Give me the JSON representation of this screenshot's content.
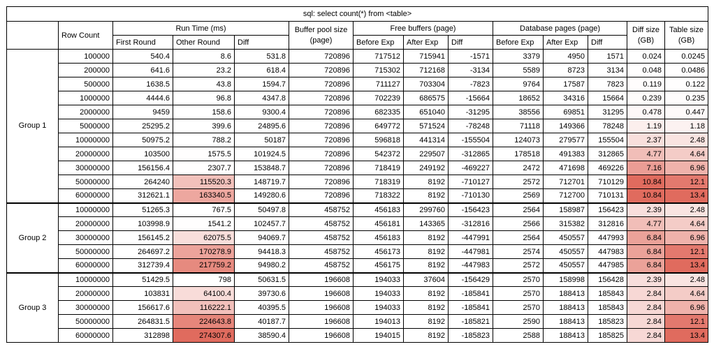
{
  "headers": {
    "row_count": "Row Count",
    "run_time": "Run Time (ms)",
    "first_round": "First Round",
    "other_round": "Other Round",
    "run_diff": "Diff",
    "buffer_pool_line1": "Buffer pool size",
    "buffer_pool_line2": "(page)",
    "free_buffers": "Free buffers (page)",
    "fb_before": "Before Exp",
    "fb_after": "After Exp",
    "fb_diff": "Diff",
    "database_pages": "Database pages (page)",
    "dp_before": "Before Exp",
    "dp_after": "After Exp",
    "dp_diff": "Diff",
    "diff_size_line1": "Diff size",
    "diff_size_line2": "(GB)",
    "table_size_line1": "Table size",
    "table_size_line2": "(GB)"
  },
  "chart_data": {
    "type": "table",
    "title": "sql: select count(*) from <table>",
    "columns": [
      "Group",
      "Row Count",
      "Run Time First Round (ms)",
      "Run Time Other Round (ms)",
      "Run Time Diff (ms)",
      "Buffer pool size (page)",
      "Free buffers Before Exp (page)",
      "Free buffers After Exp (page)",
      "Free buffers Diff (page)",
      "Database pages Before Exp (page)",
      "Database pages After Exp (page)",
      "Database pages Diff (page)",
      "Diff size (GB)",
      "Table size (GB)"
    ],
    "column_keys": [
      "row-count",
      "first-round",
      "other-round",
      "run-time-diff",
      "buffer-pool-size",
      "free-buffers-before-exp",
      "free-buffers-after-exp",
      "free-buffers-diff",
      "db-pages-before-exp",
      "db-pages-after-exp",
      "db-pages-diff",
      "diff-size",
      "table-size"
    ],
    "groups": [
      {
        "label": "Group 1",
        "rows": [
          [
            "100000",
            "540.4",
            "8.6",
            "531.8",
            "720896",
            "717512",
            "715941",
            "-1571",
            "3379",
            "4950",
            "1571",
            "0.024",
            "0.0245"
          ],
          [
            "200000",
            "641.6",
            "23.2",
            "618.4",
            "720896",
            "715302",
            "712168",
            "-3134",
            "5589",
            "8723",
            "3134",
            "0.048",
            "0.0486"
          ],
          [
            "500000",
            "1638.5",
            "43.8",
            "1594.7",
            "720896",
            "711127",
            "703304",
            "-7823",
            "9764",
            "17587",
            "7823",
            "0.119",
            "0.122"
          ],
          [
            "1000000",
            "4444.6",
            "96.8",
            "4347.8",
            "720896",
            "702239",
            "686575",
            "-15664",
            "18652",
            "34316",
            "15664",
            "0.239",
            "0.235"
          ],
          [
            "2000000",
            "9459",
            "158.6",
            "9300.4",
            "720896",
            "682335",
            "651040",
            "-31295",
            "38556",
            "69851",
            "31295",
            "0.478",
            "0.447"
          ],
          [
            "5000000",
            "25295.2",
            "399.6",
            "24895.6",
            "720896",
            "649772",
            "571524",
            "-78248",
            "71118",
            "149366",
            "78248",
            "1.19",
            "1.18"
          ],
          [
            "10000000",
            "50975.2",
            "788.2",
            "50187",
            "720896",
            "596818",
            "441314",
            "-155504",
            "124073",
            "279577",
            "155504",
            "2.37",
            "2.48"
          ],
          [
            "20000000",
            "103500",
            "1575.5",
            "101924.5",
            "720896",
            "542372",
            "229507",
            "-312865",
            "178518",
            "491383",
            "312865",
            "4.77",
            "4.64"
          ],
          [
            "30000000",
            "156156.4",
            "2307.7",
            "153848.7",
            "720896",
            "718419",
            "249192",
            "-469227",
            "2472",
            "471698",
            "469226",
            "7.16",
            "6.96"
          ],
          [
            "50000000",
            "264240",
            "115520.3",
            "148719.7",
            "720896",
            "718319",
            "8192",
            "-710127",
            "2572",
            "712701",
            "710129",
            "10.84",
            "12.1"
          ],
          [
            "60000000",
            "312621.1",
            "163340.5",
            "149280.6",
            "720896",
            "718322",
            "8192",
            "-710130",
            "2569",
            "712700",
            "710131",
            "10.84",
            "13.4"
          ]
        ]
      },
      {
        "label": "Group 2",
        "rows": [
          [
            "10000000",
            "51265.3",
            "767.5",
            "50497.8",
            "458752",
            "456183",
            "299760",
            "-156423",
            "2564",
            "158987",
            "156423",
            "2.39",
            "2.48"
          ],
          [
            "20000000",
            "103998.9",
            "1541.2",
            "102457.7",
            "458752",
            "456181",
            "143365",
            "-312816",
            "2566",
            "315382",
            "312816",
            "4.77",
            "4.64"
          ],
          [
            "30000000",
            "156145.2",
            "62075.5",
            "94069.7",
            "458752",
            "456183",
            "8192",
            "-447991",
            "2564",
            "450557",
            "447993",
            "6.84",
            "6.96"
          ],
          [
            "50000000",
            "264697.2",
            "170278.9",
            "94418.3",
            "458752",
            "456173",
            "8192",
            "-447981",
            "2574",
            "450557",
            "447983",
            "6.84",
            "12.1"
          ],
          [
            "60000000",
            "312739.4",
            "217759.2",
            "94980.2",
            "458752",
            "456175",
            "8192",
            "-447983",
            "2572",
            "450557",
            "447985",
            "6.84",
            "13.4"
          ]
        ]
      },
      {
        "label": "Group 3",
        "rows": [
          [
            "10000000",
            "51429.5",
            "798",
            "50631.5",
            "196608",
            "194033",
            "37604",
            "-156429",
            "2570",
            "158998",
            "156428",
            "2.39",
            "2.48"
          ],
          [
            "20000000",
            "103831",
            "64100.4",
            "39730.6",
            "196608",
            "194033",
            "8192",
            "-185841",
            "2570",
            "188413",
            "185843",
            "2.84",
            "4.64"
          ],
          [
            "30000000",
            "156617.6",
            "116222.1",
            "40395.5",
            "196608",
            "194033",
            "8192",
            "-185841",
            "2570",
            "188413",
            "185843",
            "2.84",
            "6.96"
          ],
          [
            "50000000",
            "264831.5",
            "224643.8",
            "40187.7",
            "196608",
            "194013",
            "8192",
            "-185821",
            "2590",
            "188413",
            "185823",
            "2.84",
            "12.1"
          ],
          [
            "60000000",
            "312898",
            "274307.6",
            "38590.4",
            "196608",
            "194015",
            "8192",
            "-185823",
            "2588",
            "188413",
            "185825",
            "2.84",
            "13.4"
          ]
        ]
      }
    ],
    "heatmap": {
      "base_color": "#e06b5e",
      "column_max": {
        "2": 274307.6,
        "11": 10.84,
        "12": 13.4
      }
    }
  }
}
